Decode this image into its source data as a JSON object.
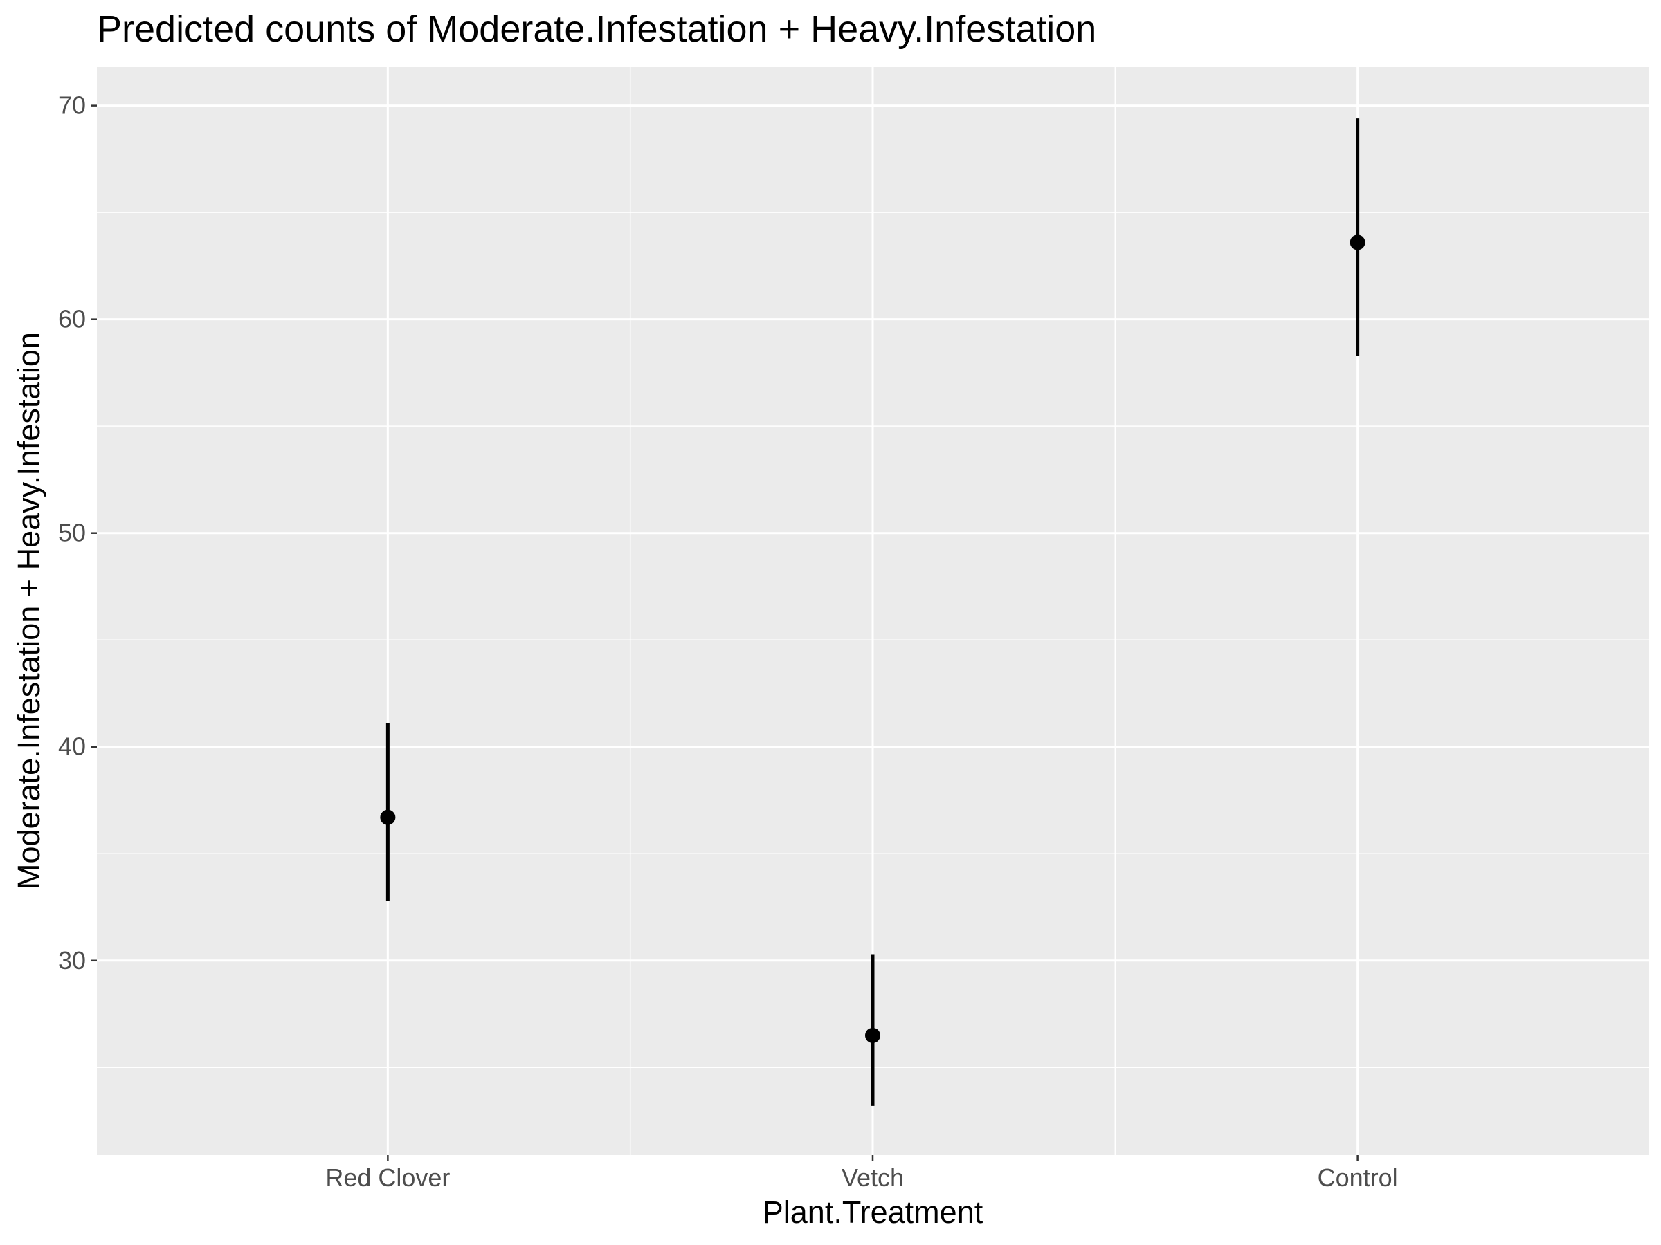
{
  "chart_data": {
    "type": "scatter",
    "title": "Predicted counts of Moderate.Infestation + Heavy.Infestation",
    "xlabel": "Plant.Treatment",
    "ylabel": "Moderate.Infestation + Heavy.Infestation",
    "categories": [
      "Red Clover",
      "Vetch",
      "Control"
    ],
    "values": [
      36.7,
      26.5,
      63.6
    ],
    "lower": [
      32.8,
      23.2,
      58.3
    ],
    "upper": [
      41.1,
      30.3,
      69.4
    ],
    "ylim": [
      20.9,
      71.8
    ],
    "yticks": [
      30,
      40,
      50,
      60,
      70
    ],
    "ytick_labels": [
      "30",
      "40",
      "50",
      "60",
      "70"
    ],
    "grid": true,
    "colors": {
      "panel": "#ebebeb",
      "grid": "#ffffff",
      "marks": "#000000",
      "tick_text": "#4d4d4d"
    }
  }
}
